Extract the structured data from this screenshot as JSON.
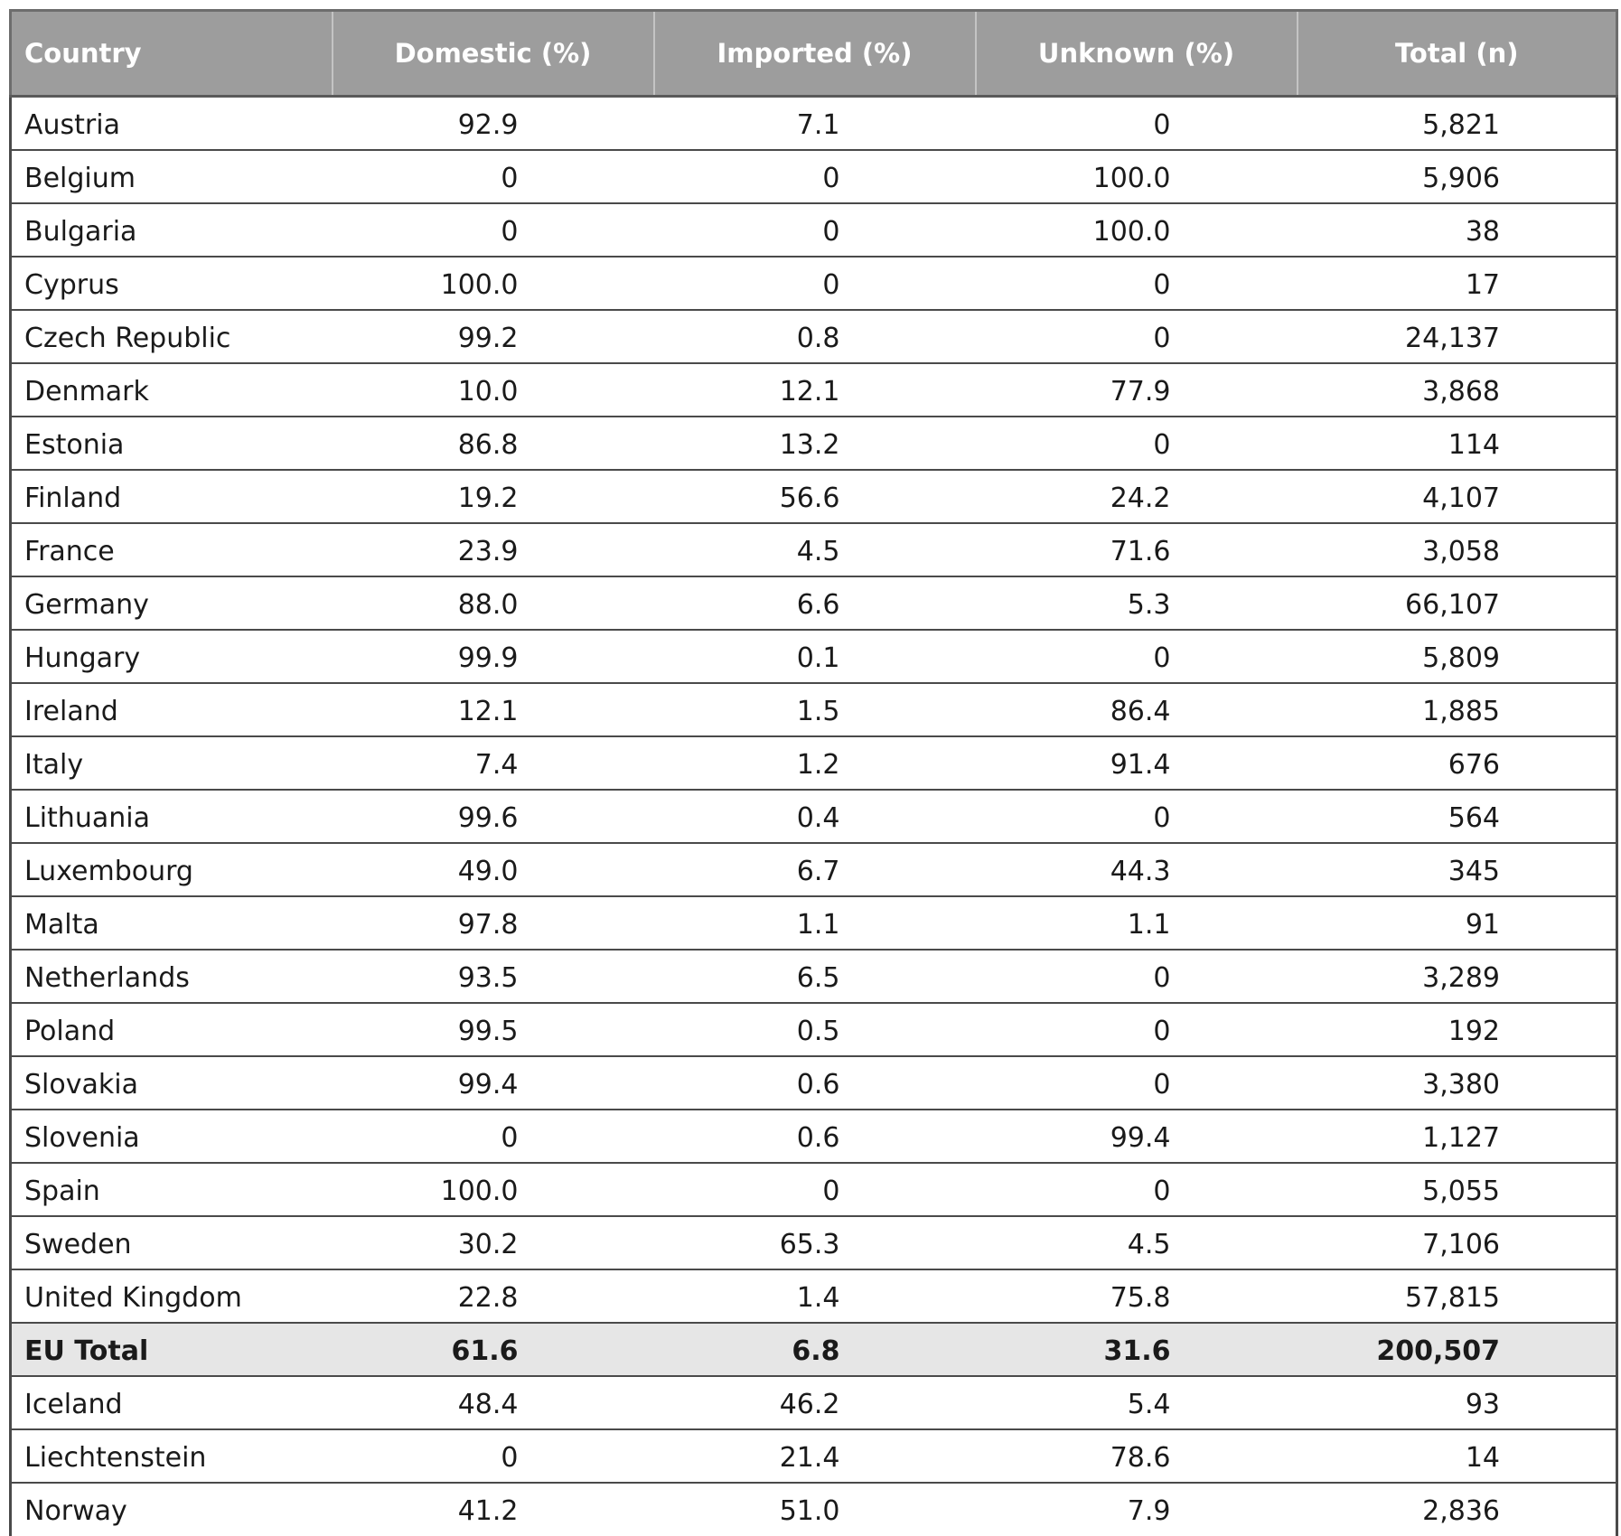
{
  "table": {
    "headers": [
      "Country",
      "Domestic (%)",
      "Imported (%)",
      "Unknown (%)",
      "Total (n)"
    ],
    "rows": [
      {
        "country": "Austria",
        "domestic": "92.9",
        "imported": "7.1",
        "unknown": "0",
        "total": "5,821"
      },
      {
        "country": "Belgium",
        "domestic": "0",
        "imported": "0",
        "unknown": "100.0",
        "total": "5,906"
      },
      {
        "country": "Bulgaria",
        "domestic": "0",
        "imported": "0",
        "unknown": "100.0",
        "total": "38"
      },
      {
        "country": "Cyprus",
        "domestic": "100.0",
        "imported": "0",
        "unknown": "0",
        "total": "17"
      },
      {
        "country": "Czech Republic",
        "domestic": "99.2",
        "imported": "0.8",
        "unknown": "0",
        "total": "24,137"
      },
      {
        "country": "Denmark",
        "domestic": "10.0",
        "imported": "12.1",
        "unknown": "77.9",
        "total": "3,868"
      },
      {
        "country": "Estonia",
        "domestic": "86.8",
        "imported": "13.2",
        "unknown": "0",
        "total": "114"
      },
      {
        "country": "Finland",
        "domestic": "19.2",
        "imported": "56.6",
        "unknown": "24.2",
        "total": "4,107"
      },
      {
        "country": "France",
        "domestic": "23.9",
        "imported": "4.5",
        "unknown": "71.6",
        "total": "3,058"
      },
      {
        "country": "Germany",
        "domestic": "88.0",
        "imported": "6.6",
        "unknown": "5.3",
        "total": "66,107"
      },
      {
        "country": "Hungary",
        "domestic": "99.9",
        "imported": "0.1",
        "unknown": "0",
        "total": "5,809"
      },
      {
        "country": "Ireland",
        "domestic": "12.1",
        "imported": "1.5",
        "unknown": "86.4",
        "total": "1,885"
      },
      {
        "country": "Italy",
        "domestic": "7.4",
        "imported": "1.2",
        "unknown": "91.4",
        "total": "676"
      },
      {
        "country": "Lithuania",
        "domestic": "99.6",
        "imported": "0.4",
        "unknown": "0",
        "total": "564"
      },
      {
        "country": "Luxembourg",
        "domestic": "49.0",
        "imported": "6.7",
        "unknown": "44.3",
        "total": "345"
      },
      {
        "country": "Malta",
        "domestic": "97.8",
        "imported": "1.1",
        "unknown": "1.1",
        "total": "91"
      },
      {
        "country": "Netherlands",
        "domestic": "93.5",
        "imported": "6.5",
        "unknown": "0",
        "total": "3,289"
      },
      {
        "country": "Poland",
        "domestic": "99.5",
        "imported": "0.5",
        "unknown": "0",
        "total": "192"
      },
      {
        "country": "Slovakia",
        "domestic": "99.4",
        "imported": "0.6",
        "unknown": "0",
        "total": "3,380"
      },
      {
        "country": "Slovenia",
        "domestic": "0",
        "imported": "0.6",
        "unknown": "99.4",
        "total": "1,127"
      },
      {
        "country": "Spain",
        "domestic": "100.0",
        "imported": "0",
        "unknown": "0",
        "total": "5,055"
      },
      {
        "country": "Sweden",
        "domestic": "30.2",
        "imported": "65.3",
        "unknown": "4.5",
        "total": "7,106"
      },
      {
        "country": "United Kingdom",
        "domestic": "22.8",
        "imported": "1.4",
        "unknown": "75.8",
        "total": "57,815"
      },
      {
        "country": "EU Total",
        "domestic": "61.6",
        "imported": "6.8",
        "unknown": "31.6",
        "total": "200,507",
        "is_total": true
      },
      {
        "country": "Iceland",
        "domestic": "48.4",
        "imported": "46.2",
        "unknown": "5.4",
        "total": "93"
      },
      {
        "country": "Liechtenstein",
        "domestic": "0",
        "imported": "21.4",
        "unknown": "78.6",
        "total": "14"
      },
      {
        "country": "Norway",
        "domestic": "41.2",
        "imported": "51.0",
        "unknown": "7.9",
        "total": "2,836"
      }
    ]
  },
  "colors": {
    "header_background": "#9d9d9d",
    "header_text": "#ffffff",
    "total_row_background": "#e6e6e6",
    "grid_lines": "#4a4a4a"
  }
}
